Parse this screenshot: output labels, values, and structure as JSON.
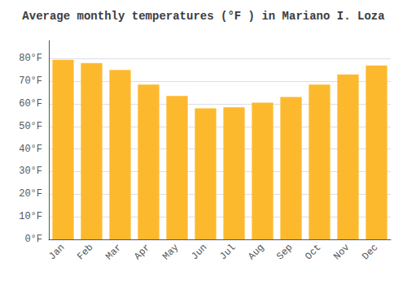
{
  "chart_data": {
    "type": "bar",
    "title": "Average monthly temperatures (°F ) in Mariano I. Loza",
    "categories": [
      "Jan",
      "Feb",
      "Mar",
      "Apr",
      "May",
      "Jun",
      "Jul",
      "Aug",
      "Sep",
      "Oct",
      "Nov",
      "Dec"
    ],
    "values": [
      79.5,
      78.0,
      75.0,
      68.5,
      63.5,
      58.0,
      58.5,
      60.5,
      63.0,
      68.5,
      73.0,
      77.0
    ],
    "color": "#FDB92E",
    "ylim": [
      0,
      88
    ],
    "yticks": [
      {
        "value": 0,
        "label": "0°F"
      },
      {
        "value": 10,
        "label": "10°F"
      },
      {
        "value": 20,
        "label": "20°F"
      },
      {
        "value": 30,
        "label": "30°F"
      },
      {
        "value": 40,
        "label": "40°F"
      },
      {
        "value": 50,
        "label": "50°F"
      },
      {
        "value": 60,
        "label": "60°F"
      },
      {
        "value": 70,
        "label": "70°F"
      },
      {
        "value": 80,
        "label": "80°F"
      }
    ],
    "grid": true
  }
}
